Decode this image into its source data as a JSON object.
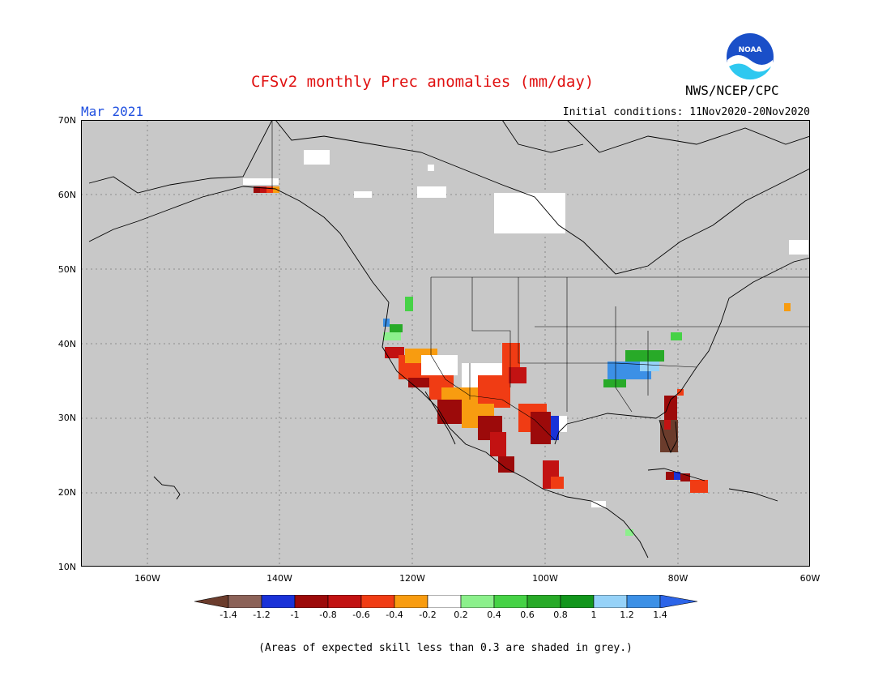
{
  "header": {
    "title": "CFSv2 monthly Prec anomalies (mm/day)",
    "month": "Mar 2021",
    "initial_conditions": "Initial conditions: 11Nov2020-20Nov2020",
    "agency": "NWS/NCEP/CPC",
    "logo_text": "NOAA"
  },
  "axes": {
    "lat_labels": [
      "70N",
      "60N",
      "50N",
      "40N",
      "30N",
      "20N",
      "10N"
    ],
    "lon_labels": [
      "160W",
      "140W",
      "120W",
      "100W",
      "80W",
      "60W"
    ]
  },
  "colorbar": {
    "labels": [
      "-1.4",
      "-1.2",
      "-1",
      "-0.8",
      "-0.6",
      "-0.4",
      "-0.2",
      "0.2",
      "0.4",
      "0.6",
      "0.8",
      "1",
      "1.2",
      "1.4"
    ],
    "colors": [
      "#6b3c2c",
      "#8c6258",
      "#1a32d8",
      "#9c0a0a",
      "#c21212",
      "#f03c14",
      "#f89c10",
      "#ffffff",
      "#8cf08c",
      "#46d246",
      "#28aa28",
      "#12961c",
      "#96d2f8",
      "#3c90e6",
      "#2c64e8"
    ]
  },
  "map": {
    "background_color": "#c8c8c8",
    "extent": "170W-60W, 10N-70N"
  },
  "footnote": "(Areas of expected skill less than 0.3 are shaded in grey.)"
}
